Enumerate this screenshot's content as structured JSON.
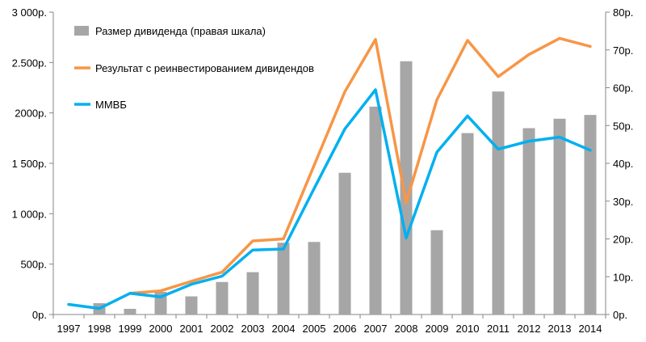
{
  "chart_data": {
    "type": "bar+line",
    "categories": [
      "1997",
      "1998",
      "1999",
      "2000",
      "2001",
      "2002",
      "2003",
      "2004",
      "2005",
      "2006",
      "2007",
      "2008",
      "2009",
      "2010",
      "2011",
      "2012",
      "2013",
      "2014"
    ],
    "left_axis": {
      "ylim": [
        0,
        3000
      ],
      "ticks": [
        0,
        500,
        1000,
        1500,
        2000,
        2500,
        3000
      ],
      "tick_labels": [
        "0р.",
        "500р.",
        "1 000р.",
        "1 500р.",
        "2000р.",
        "2.500р.",
        "3 000р."
      ]
    },
    "right_axis": {
      "ylim": [
        0,
        80
      ],
      "ticks": [
        0,
        10,
        20,
        30,
        40,
        50,
        60,
        70,
        80
      ],
      "tick_labels": [
        "0р.",
        "10р.",
        "20р.",
        "30р.",
        "40р.",
        "50р.",
        "60р.",
        "70р.",
        "80р."
      ]
    },
    "series": [
      {
        "name": "Размер дивиденда (правая шкала)",
        "kind": "bar",
        "axis": "right",
        "color": "#a6a6a6",
        "values": [
          0,
          3,
          1.5,
          6,
          4.8,
          8.6,
          11.2,
          19,
          19.2,
          37.5,
          55,
          67,
          22.3,
          48,
          59,
          49.3,
          51.8,
          52.8
        ]
      },
      {
        "name": "Результат с реинвестированием  дивидендов",
        "kind": "line",
        "axis": "left",
        "color": "#f79646",
        "values": [
          null,
          null,
          210,
          235,
          330,
          420,
          730,
          750,
          1480,
          2210,
          2730,
          1110,
          2130,
          2720,
          2360,
          2580,
          2740,
          2660
        ]
      },
      {
        "name": "ММВБ",
        "kind": "line",
        "axis": "left",
        "color": "#00b0f0",
        "values": [
          100,
          60,
          210,
          175,
          300,
          380,
          640,
          650,
          1250,
          1840,
          2230,
          760,
          1610,
          1970,
          1640,
          1720,
          1760,
          1630
        ]
      }
    ],
    "legend_placement": "top-left",
    "grid": false
  }
}
